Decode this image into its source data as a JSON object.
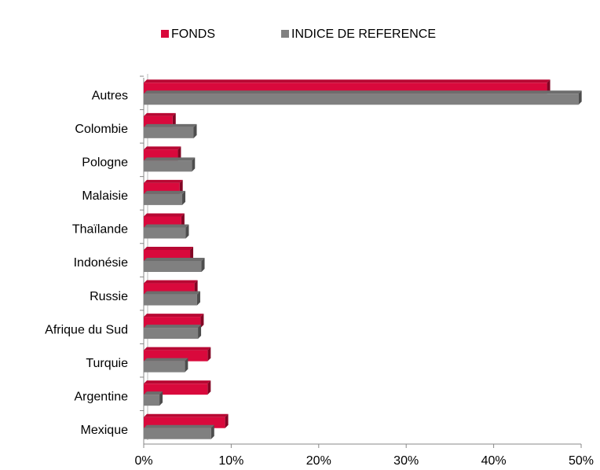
{
  "chart_data": {
    "type": "hbar",
    "categories": [
      "Autres",
      "Colombie",
      "Pologne",
      "Malaisie",
      "Thaïlande",
      "Indonésie",
      "Russie",
      "Afrique du Sud",
      "Turquie",
      "Argentine",
      "Mexique"
    ],
    "series": [
      {
        "name": "FONDS",
        "color": "#d9093c",
        "values": [
          46.1,
          3.3,
          3.9,
          4.1,
          4.3,
          5.3,
          5.8,
          6.5,
          7.3,
          7.3,
          9.3
        ]
      },
      {
        "name": "INDICE DE REFERENCE",
        "color": "#808080",
        "values": [
          49.7,
          5.7,
          5.5,
          4.4,
          4.8,
          6.6,
          6.1,
          6.2,
          4.7,
          1.8,
          7.7
        ]
      }
    ],
    "xlim": [
      0,
      50
    ],
    "xticks": [
      {
        "value": 0,
        "label": "0%"
      },
      {
        "value": 10,
        "label": "10%"
      },
      {
        "value": 20,
        "label": "20%"
      },
      {
        "value": 30,
        "label": "30%"
      },
      {
        "value": 40,
        "label": "40%"
      },
      {
        "value": 50,
        "label": "50%"
      }
    ],
    "legend": "top"
  }
}
